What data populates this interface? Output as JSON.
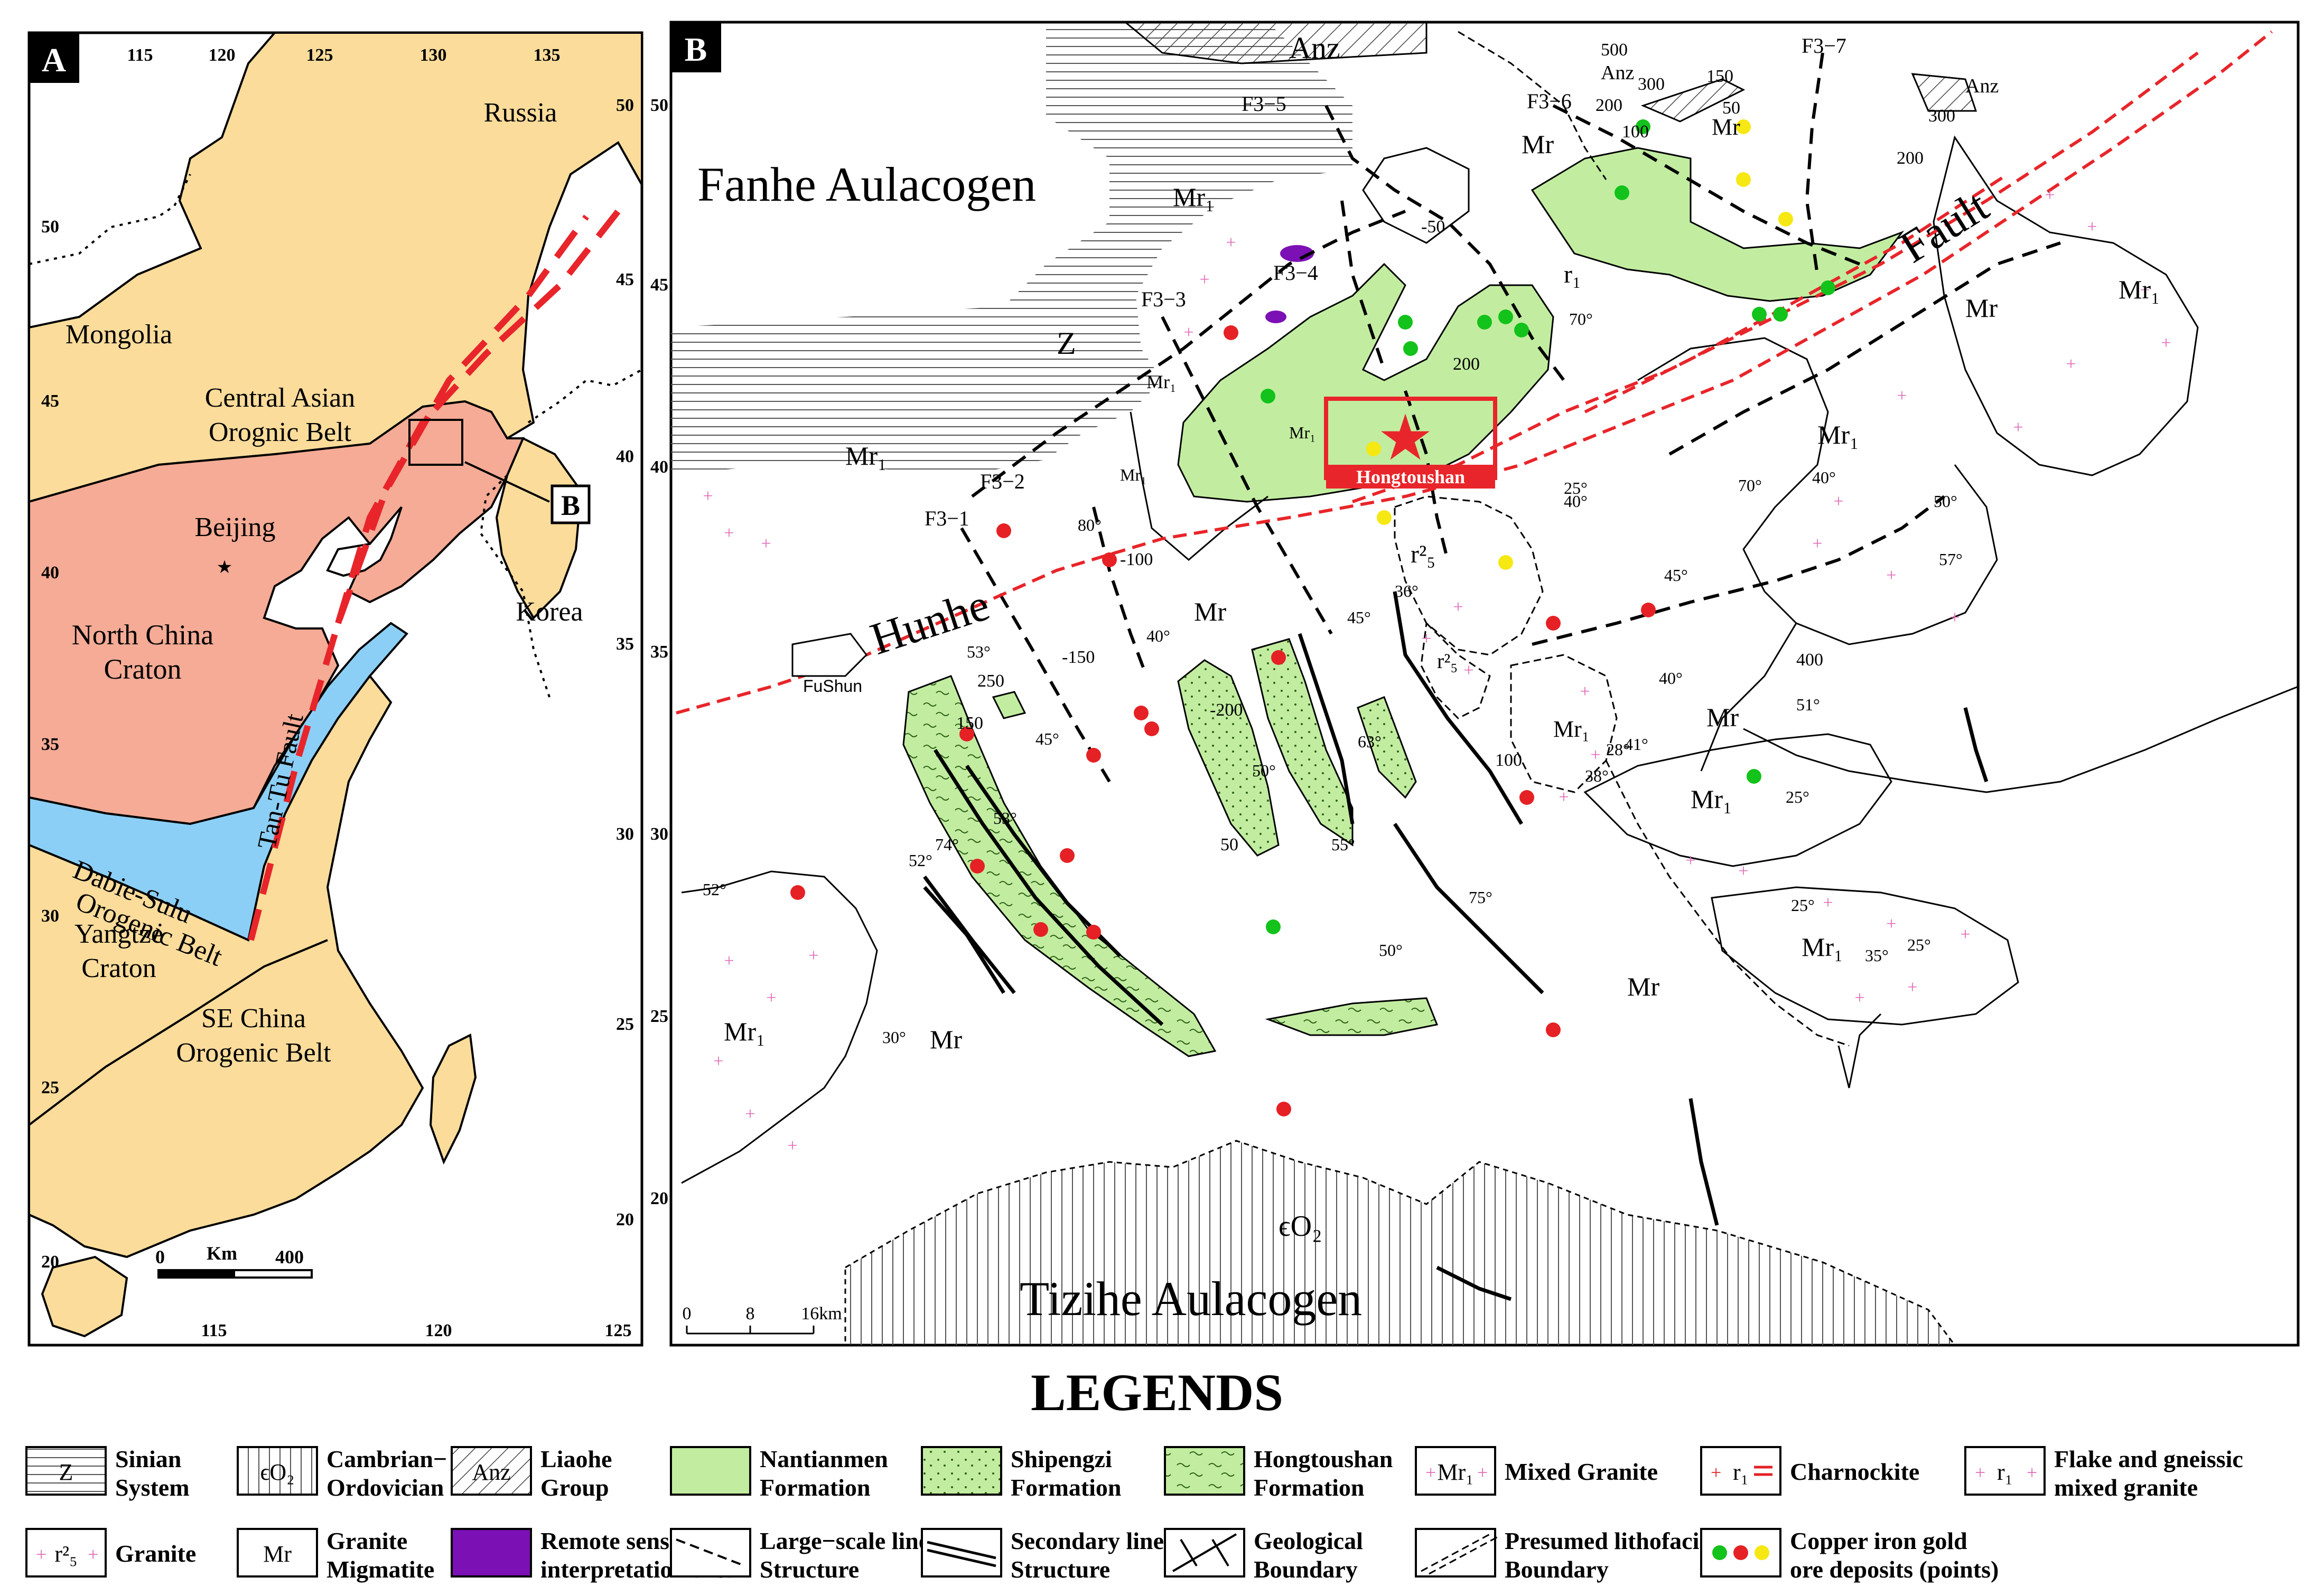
{
  "panel_a": {
    "label": "A",
    "lon_ticks_top": [
      "115",
      "120",
      "125",
      "130",
      "135"
    ],
    "lon_ticks_bottom": [
      "115",
      "120",
      "125"
    ],
    "lat_ticks_left": [
      "50",
      "45",
      "40",
      "35",
      "30",
      "25",
      "20"
    ],
    "lat_ticks_right": [
      "50",
      "45",
      "40",
      "35",
      "30",
      "25",
      "20"
    ],
    "regions": {
      "russia": "Russia",
      "mongolia": "Mongolia",
      "central_asian_1": "Central Asian",
      "central_asian_2": "Orognic Belt",
      "beijing": "Beijing",
      "north_china_1": "North China",
      "north_china_2": "Craton",
      "korea": "Korea",
      "tan_tu": "Tan-Tu Fault",
      "dabie_1": "Dabie-Sulu",
      "dabie_2": "Orogenic Belt",
      "yangtze_1": "Yangtze",
      "yangtze_2": "Craton",
      "se_china_1": "SE China",
      "se_china_2": "Orogenic Belt"
    },
    "inset_label": "B",
    "scale": {
      "zero": "0",
      "unit": "Km",
      "max": "400"
    },
    "colors": {
      "craton": "#f5ab95",
      "orogenic": "#fbdc9b",
      "dabie": "#8ccff6",
      "fault": "#e8252a"
    }
  },
  "panel_b": {
    "label": "B",
    "units": {
      "fanhe": "Fanhe Aulacogen",
      "tizihe": "Tizihe Aulacogen",
      "hunhe": "Hunhe",
      "fault": "Fault",
      "hongtoushan": "Hongtoushan",
      "fushun": "FuShun",
      "anz_top": "Anz",
      "anz_small": "Anz",
      "anz_right": "Anz",
      "z": "Z",
      "eo2": "ϵO₂"
    },
    "faults": [
      "F3−5",
      "F3−6",
      "F3−7",
      "F3−4",
      "F3−3",
      "F3−2",
      "F3−1"
    ],
    "rock_labels": {
      "mr": "Mr",
      "mr1": "Mr₁",
      "r1": "r₁",
      "r25": "r²₅"
    },
    "contours": [
      "500",
      "300",
      "200",
      "150",
      "100",
      "-50",
      "-100",
      "-150",
      "-200",
      "50",
      "250",
      "400",
      "300",
      "200",
      "50",
      "200",
      "100",
      "150"
    ],
    "dips": [
      "70°",
      "40°",
      "25°",
      "70°",
      "40°",
      "50°",
      "57°",
      "45°",
      "40°",
      "41°",
      "51°",
      "25°",
      "80°",
      "53°",
      "45°",
      "40°",
      "52°",
      "63°",
      "55°",
      "75°",
      "50°",
      "30°",
      "52°",
      "74°",
      "53°",
      "35°",
      "25°",
      "25°",
      "36°",
      "45°",
      "50°",
      "28°",
      "38°"
    ],
    "scale": {
      "zero": "0",
      "mid": "8",
      "max": "16km"
    },
    "lat_ticks": [
      "50",
      "45",
      "40",
      "35",
      "30",
      "25",
      "20"
    ],
    "colors": {
      "formation": "#c2eda0",
      "deposit_green": "#13c21a",
      "deposit_red": "#e52125",
      "deposit_yellow": "#f6e812",
      "remote": "#7b10b5",
      "hunhe": "#e8252a"
    }
  },
  "legend": {
    "title": "LEGENDS",
    "items": [
      {
        "sym": "Z",
        "line1": "Sinian",
        "line2": "System"
      },
      {
        "sym": "ϵO₂",
        "line1": "Cambrian−",
        "line2": "Ordovician"
      },
      {
        "sym": "Anz",
        "line1": "Liaohe",
        "line2": "Group"
      },
      {
        "sym": "",
        "line1": "Nantianmen",
        "line2": "Formation"
      },
      {
        "sym": "",
        "line1": "Shipengzi",
        "line2": "Formation"
      },
      {
        "sym": "",
        "line1": "Hongtoushan",
        "line2": "Formation"
      },
      {
        "sym": "Mr₁",
        "line1": "Mixed Granite",
        "line2": ""
      },
      {
        "sym": "r₁",
        "line1": "Charnockite",
        "line2": ""
      },
      {
        "sym": "r₁",
        "line1": "Flake and gneissic",
        "line2": "mixed granite"
      },
      {
        "sym": "r²₅",
        "line1": "Granite",
        "line2": ""
      },
      {
        "sym": "Mr",
        "line1": "Granite",
        "line2": "Migmatite"
      },
      {
        "sym": "",
        "line1": "Remote sensing",
        "line2": "interpretation area"
      },
      {
        "sym": "",
        "line1": "Large−scale linear",
        "line2": "Structure"
      },
      {
        "sym": "",
        "line1": "Secondary linear",
        "line2": "Structure"
      },
      {
        "sym": "",
        "line1": "Geological",
        "line2": "Boundary"
      },
      {
        "sym": "",
        "line1": "Presumed lithofacies",
        "line2": "Boundary"
      },
      {
        "sym": "",
        "line1": "Copper iron gold",
        "line2": "ore deposits (points)"
      }
    ]
  }
}
